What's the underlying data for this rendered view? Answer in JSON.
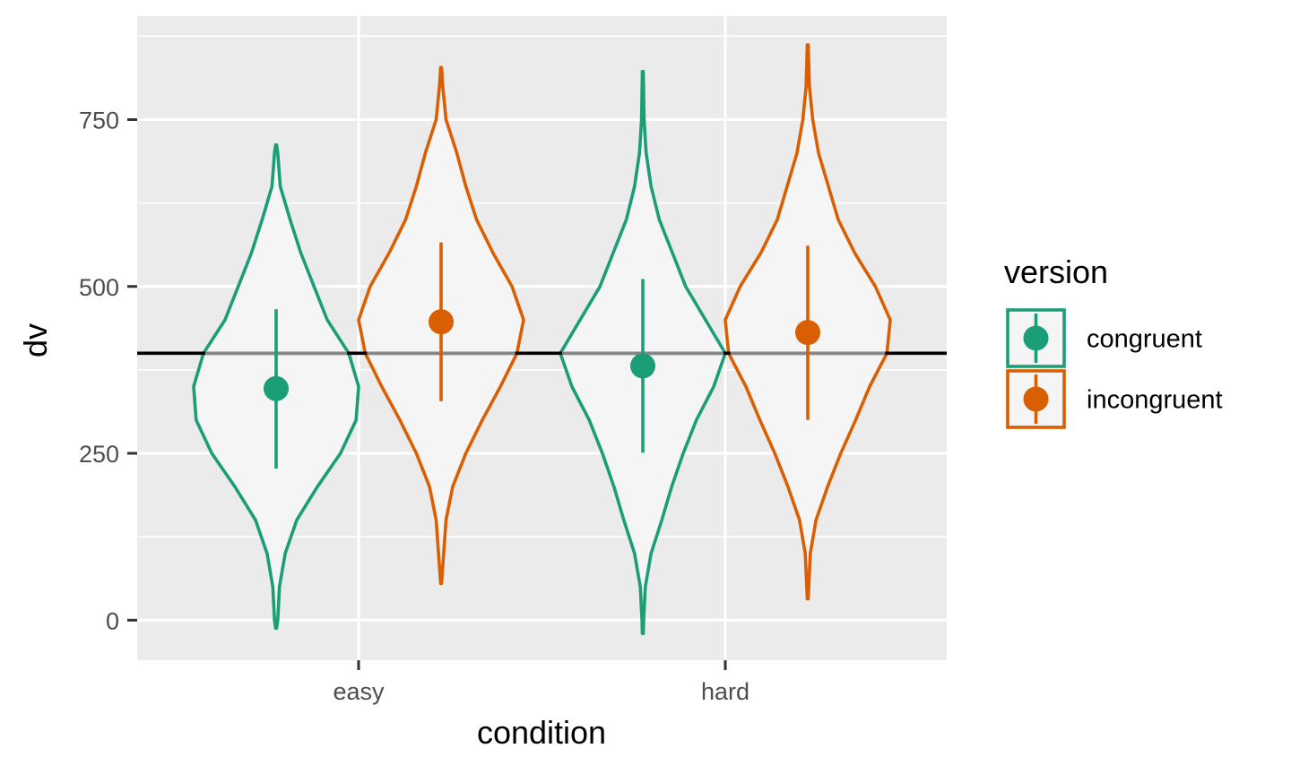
{
  "chart_data": {
    "type": "violin",
    "xlabel": "condition",
    "ylabel": "dv",
    "categories": [
      "easy",
      "hard"
    ],
    "ylim": [
      -60,
      905
    ],
    "y_ticks": [
      0,
      250,
      500,
      750
    ],
    "y_tick_labels": [
      "0",
      "250",
      "500",
      "750"
    ],
    "reference_line": 400,
    "grid": true,
    "legend": {
      "title": "version",
      "position": "right",
      "entries": [
        "congruent",
        "incongruent"
      ]
    },
    "colors": {
      "congruent": "#1b9e77",
      "incongruent": "#d95f02",
      "panel": "#ebebeb",
      "violin_fill": "#f5f5f5",
      "reference_line": "#000000"
    },
    "series": [
      {
        "name": "congruent",
        "summaries": [
          {
            "category": "easy",
            "mean": 347,
            "lower": 227,
            "upper": 466,
            "min": -12,
            "max": 712
          },
          {
            "category": "hard",
            "mean": 381,
            "lower": 251,
            "upper": 511,
            "min": -20,
            "max": 822
          }
        ]
      },
      {
        "name": "incongruent",
        "summaries": [
          {
            "category": "easy",
            "mean": 447,
            "lower": 328,
            "upper": 566,
            "min": 55,
            "max": 828
          },
          {
            "category": "hard",
            "mean": 431,
            "lower": 300,
            "upper": 561,
            "min": 32,
            "max": 862
          }
        ]
      }
    ],
    "violins": [
      {
        "series": "congruent",
        "category": "easy",
        "density": [
          [
            -12,
            0.005
          ],
          [
            0,
            0.02
          ],
          [
            50,
            0.04
          ],
          [
            100,
            0.11
          ],
          [
            150,
            0.25
          ],
          [
            200,
            0.5
          ],
          [
            250,
            0.78
          ],
          [
            300,
            0.97
          ],
          [
            350,
            1.0
          ],
          [
            400,
            0.88
          ],
          [
            450,
            0.62
          ],
          [
            500,
            0.46
          ],
          [
            550,
            0.3
          ],
          [
            600,
            0.17
          ],
          [
            650,
            0.05
          ],
          [
            700,
            0.02
          ],
          [
            712,
            0.005
          ]
        ]
      },
      {
        "series": "incongruent",
        "category": "easy",
        "density": [
          [
            55,
            0.005
          ],
          [
            80,
            0.02
          ],
          [
            150,
            0.06
          ],
          [
            200,
            0.14
          ],
          [
            250,
            0.3
          ],
          [
            300,
            0.5
          ],
          [
            350,
            0.72
          ],
          [
            400,
            0.92
          ],
          [
            450,
            1.0
          ],
          [
            500,
            0.86
          ],
          [
            550,
            0.63
          ],
          [
            600,
            0.43
          ],
          [
            650,
            0.3
          ],
          [
            700,
            0.19
          ],
          [
            750,
            0.06
          ],
          [
            800,
            0.02
          ],
          [
            828,
            0.005
          ]
        ]
      },
      {
        "series": "congruent",
        "category": "hard",
        "density": [
          [
            -20,
            0.005
          ],
          [
            0,
            0.01
          ],
          [
            50,
            0.03
          ],
          [
            100,
            0.1
          ],
          [
            150,
            0.23
          ],
          [
            200,
            0.35
          ],
          [
            250,
            0.49
          ],
          [
            300,
            0.65
          ],
          [
            350,
            0.86
          ],
          [
            400,
            1.0
          ],
          [
            450,
            0.76
          ],
          [
            500,
            0.52
          ],
          [
            550,
            0.36
          ],
          [
            600,
            0.2
          ],
          [
            650,
            0.1
          ],
          [
            700,
            0.04
          ],
          [
            750,
            0.015
          ],
          [
            822,
            0.005
          ]
        ]
      },
      {
        "series": "incongruent",
        "category": "hard",
        "density": [
          [
            32,
            0.005
          ],
          [
            100,
            0.03
          ],
          [
            150,
            0.1
          ],
          [
            200,
            0.24
          ],
          [
            250,
            0.4
          ],
          [
            300,
            0.58
          ],
          [
            350,
            0.75
          ],
          [
            400,
            0.96
          ],
          [
            450,
            1.0
          ],
          [
            500,
            0.82
          ],
          [
            550,
            0.57
          ],
          [
            600,
            0.37
          ],
          [
            650,
            0.25
          ],
          [
            700,
            0.13
          ],
          [
            750,
            0.06
          ],
          [
            800,
            0.02
          ],
          [
            862,
            0.005
          ]
        ]
      }
    ]
  }
}
